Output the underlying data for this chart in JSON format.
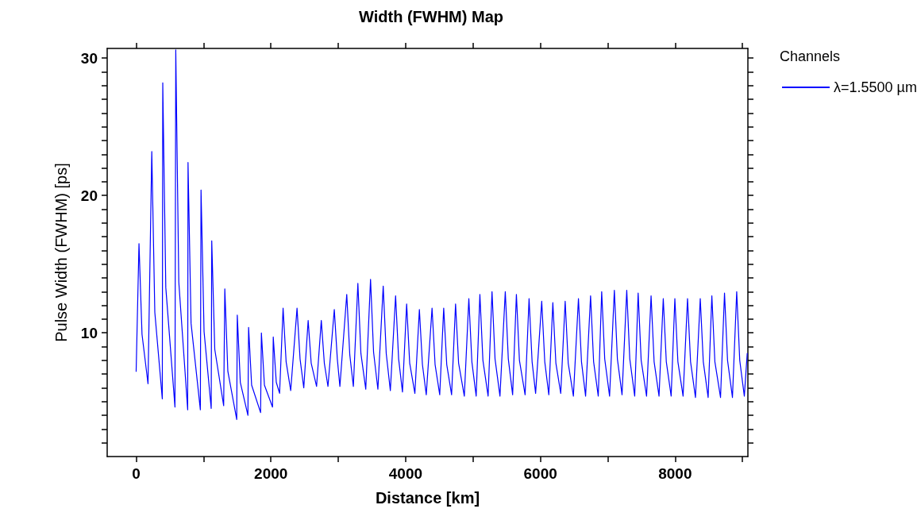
{
  "chart_data": {
    "type": "line",
    "title": "Width (FWHM) Map",
    "xlabel": "Distance [km]",
    "ylabel": "Pulse Width (FWHM) [ps]",
    "legend_title": "Channels",
    "legend": "right",
    "grid": false,
    "marker": "none",
    "line_style": "solid",
    "xlim": [
      -430,
      9080
    ],
    "ylim": [
      1,
      30.7
    ],
    "xticks": [
      0,
      {
        "value": 1000,
        "label": null
      },
      2000,
      {
        "value": 3000,
        "label": null
      },
      4000,
      {
        "value": 5000,
        "label": null
      },
      6000,
      {
        "value": 7000,
        "label": null
      },
      8000,
      {
        "value": 9000,
        "label": null
      }
    ],
    "yticks": [
      {
        "value": 2,
        "label": null
      },
      {
        "value": 3,
        "label": null
      },
      {
        "value": 4,
        "label": null
      },
      {
        "value": 5,
        "label": null
      },
      {
        "value": 6,
        "label": null
      },
      {
        "value": 7,
        "label": null
      },
      {
        "value": 8,
        "label": null
      },
      {
        "value": 9,
        "label": null
      },
      10,
      {
        "value": 11,
        "label": null
      },
      {
        "value": 12,
        "label": null
      },
      {
        "value": 13,
        "label": null
      },
      {
        "value": 14,
        "label": null
      },
      {
        "value": 15,
        "label": null
      },
      {
        "value": 16,
        "label": null
      },
      {
        "value": 17,
        "label": null
      },
      {
        "value": 18,
        "label": null
      },
      {
        "value": 19,
        "label": null
      },
      20,
      {
        "value": 21,
        "label": null
      },
      {
        "value": 22,
        "label": null
      },
      {
        "value": 23,
        "label": null
      },
      {
        "value": 24,
        "label": null
      },
      {
        "value": 25,
        "label": null
      },
      {
        "value": 26,
        "label": null
      },
      {
        "value": 27,
        "label": null
      },
      {
        "value": 28,
        "label": null
      },
      {
        "value": 29,
        "label": null
      },
      30
    ],
    "series": [
      {
        "name": "λ=1.5500 µm",
        "color": "#0000ff",
        "x": [
          0,
          42,
          87,
          176,
          232,
          277,
          388,
          395,
          440,
          576,
          588,
          633,
          765,
          770,
          815,
          953,
          963,
          1008,
          1114,
          1122,
          1167,
          1299,
          1316,
          1361,
          1493,
          1501,
          1546,
          1659,
          1669,
          1714,
          1847,
          1859,
          1904,
          2024,
          2035,
          2080,
          2129,
          2181,
          2226,
          2294,
          2388,
          2433,
          2488,
          2553,
          2598,
          2678,
          2748,
          2793,
          2847,
          2941,
          2986,
          3024,
          3126,
          3171,
          3224,
          3291,
          3336,
          3408,
          3479,
          3524,
          3588,
          3667,
          3712,
          3773,
          3851,
          3896,
          3953,
          4015,
          4060,
          4137,
          4204,
          4249,
          4306,
          4392,
          4437,
          4506,
          4565,
          4610,
          4682,
          4741,
          4786,
          4871,
          4938,
          4983,
          5047,
          5102,
          5147,
          5224,
          5282,
          5327,
          5400,
          5479,
          5524,
          5588,
          5644,
          5689,
          5773,
          5832,
          5877,
          5929,
          6020,
          6065,
          6125,
          6185,
          6230,
          6302,
          6368,
          6413,
          6490,
          6565,
          6610,
          6671,
          6745,
          6790,
          6859,
          6910,
          6955,
          7027,
          7098,
          7143,
          7212,
          7282,
          7327,
          7400,
          7451,
          7496,
          7576,
          7643,
          7688,
          7761,
          7824,
          7869,
          7941,
          7996,
          8041,
          8118,
          8184,
          8229,
          8302,
          8373,
          8418,
          8490,
          8545,
          8590,
          8674,
          8733,
          8778,
          8851,
          8914,
          8959,
          9027,
          9070
        ],
        "values": [
          7.2,
          16.5,
          9.9,
          6.3,
          23.2,
          11.5,
          5.2,
          28.2,
          13.3,
          4.6,
          30.6,
          13.7,
          4.4,
          22.4,
          10.7,
          4.4,
          20.4,
          10.1,
          4.5,
          16.7,
          8.8,
          4.7,
          13.2,
          7.2,
          3.7,
          11.3,
          6.4,
          4.0,
          10.4,
          6.2,
          4.2,
          10.0,
          6.2,
          4.6,
          9.7,
          6.4,
          5.6,
          11.8,
          7.9,
          5.8,
          11.8,
          8.1,
          6.0,
          10.9,
          7.8,
          6.1,
          10.9,
          7.8,
          6.1,
          11.7,
          8.1,
          6.1,
          12.8,
          8.4,
          6.1,
          13.6,
          8.5,
          5.9,
          13.9,
          8.6,
          5.9,
          13.4,
          8.5,
          5.8,
          12.7,
          8.1,
          5.7,
          12.1,
          7.8,
          5.6,
          11.7,
          7.7,
          5.5,
          11.8,
          7.7,
          5.5,
          11.8,
          7.7,
          5.5,
          12.1,
          7.8,
          5.4,
          12.5,
          7.9,
          5.4,
          12.8,
          8.0,
          5.4,
          13.0,
          8.1,
          5.4,
          13.0,
          8.1,
          5.5,
          12.8,
          8.0,
          5.5,
          12.5,
          7.9,
          5.6,
          12.3,
          7.9,
          5.5,
          12.2,
          7.8,
          5.6,
          12.3,
          7.8,
          5.4,
          12.5,
          7.9,
          5.4,
          12.7,
          7.9,
          5.4,
          13.0,
          8.1,
          5.4,
          13.1,
          8.1,
          5.5,
          13.1,
          8.1,
          5.4,
          12.9,
          8.0,
          5.4,
          12.7,
          7.9,
          5.4,
          12.5,
          7.9,
          5.4,
          12.5,
          7.9,
          5.4,
          12.5,
          7.9,
          5.3,
          12.5,
          7.9,
          5.3,
          12.7,
          7.9,
          5.3,
          12.9,
          8.0,
          5.3,
          13.0,
          8.0,
          5.4,
          8.5
        ]
      }
    ]
  }
}
